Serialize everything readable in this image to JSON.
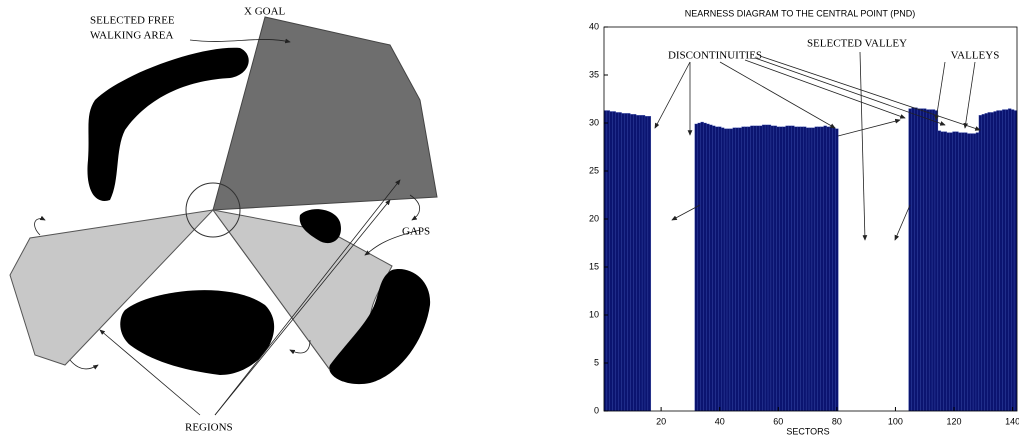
{
  "diagram": {
    "selected_area": [
      "SELECTED FREE",
      "WALKING AREA"
    ],
    "goal": "X GOAL",
    "gaps": "GAPS",
    "regions": "REGIONS"
  },
  "chart_data": {
    "type": "bar",
    "title": "NEARNESS DIAGRAM TO THE CENTRAL POINT  (PND)",
    "xlabel": "SECTORS",
    "annotations": [
      "DISCONTINUITIES",
      "SELECTED VALLEY",
      "VALLEYS"
    ],
    "color": "#0b1470",
    "xlim": [
      0.5,
      141.5
    ],
    "xticks": [
      20,
      40,
      60,
      80,
      100,
      120,
      140
    ],
    "ylim": [
      0,
      40
    ],
    "yticks": [
      0,
      5,
      10,
      15,
      20,
      25,
      30,
      35,
      40
    ],
    "x": [
      1,
      2,
      3,
      4,
      5,
      6,
      7,
      8,
      9,
      10,
      11,
      12,
      13,
      14,
      15,
      16,
      17,
      18,
      19,
      20,
      21,
      22,
      23,
      24,
      25,
      26,
      27,
      28,
      29,
      30,
      31,
      32,
      33,
      34,
      35,
      36,
      37,
      38,
      39,
      40,
      41,
      42,
      43,
      44,
      45,
      46,
      47,
      48,
      49,
      50,
      51,
      52,
      53,
      54,
      55,
      56,
      57,
      58,
      59,
      60,
      61,
      62,
      63,
      64,
      65,
      66,
      67,
      68,
      69,
      70,
      71,
      72,
      73,
      74,
      75,
      76,
      77,
      78,
      79,
      80,
      81,
      82,
      83,
      84,
      85,
      86,
      87,
      88,
      89,
      90,
      91,
      92,
      93,
      94,
      95,
      96,
      97,
      98,
      99,
      100,
      101,
      102,
      103,
      104,
      105,
      106,
      107,
      108,
      109,
      110,
      111,
      112,
      113,
      114,
      115,
      116,
      117,
      118,
      119,
      120,
      121,
      122,
      123,
      124,
      125,
      126,
      127,
      128,
      129,
      130,
      131,
      132,
      133,
      134,
      135,
      136,
      137,
      138,
      139,
      140,
      141
    ],
    "values": [
      31.3,
      31.3,
      31.2,
      31.2,
      31.1,
      31.1,
      31.0,
      31.0,
      31.0,
      30.9,
      30.9,
      30.8,
      30.8,
      30.8,
      30.7,
      30.7,
      0,
      0,
      0,
      0,
      0,
      0,
      0,
      0,
      0,
      0,
      0,
      0,
      0,
      0,
      0,
      29.9,
      30.0,
      30.1,
      30.0,
      29.9,
      29.8,
      29.7,
      29.6,
      29.6,
      29.5,
      29.4,
      29.4,
      29.4,
      29.5,
      29.5,
      29.5,
      29.6,
      29.6,
      29.6,
      29.7,
      29.7,
      29.7,
      29.7,
      29.8,
      29.8,
      29.8,
      29.7,
      29.7,
      29.6,
      29.6,
      29.6,
      29.7,
      29.7,
      29.7,
      29.6,
      29.6,
      29.6,
      29.6,
      29.5,
      29.5,
      29.5,
      29.6,
      29.6,
      29.6,
      29.7,
      29.6,
      29.6,
      29.5,
      29.4,
      0,
      0,
      0,
      0,
      0,
      0,
      0,
      0,
      0,
      0,
      0,
      0,
      0,
      0,
      0,
      0,
      0,
      0,
      0,
      0,
      0,
      0,
      0,
      0,
      31.5,
      31.6,
      31.6,
      31.5,
      31.5,
      31.5,
      31.4,
      31.4,
      31.4,
      31.3,
      29.2,
      29.1,
      29.1,
      29.0,
      29.0,
      29.1,
      29.1,
      29.0,
      29.0,
      29.0,
      28.9,
      28.9,
      28.9,
      29.0,
      30.8,
      30.9,
      31.0,
      31.1,
      31.1,
      31.2,
      31.3,
      31.3,
      31.4,
      31.4,
      31.5,
      31.4,
      31.3
    ]
  }
}
